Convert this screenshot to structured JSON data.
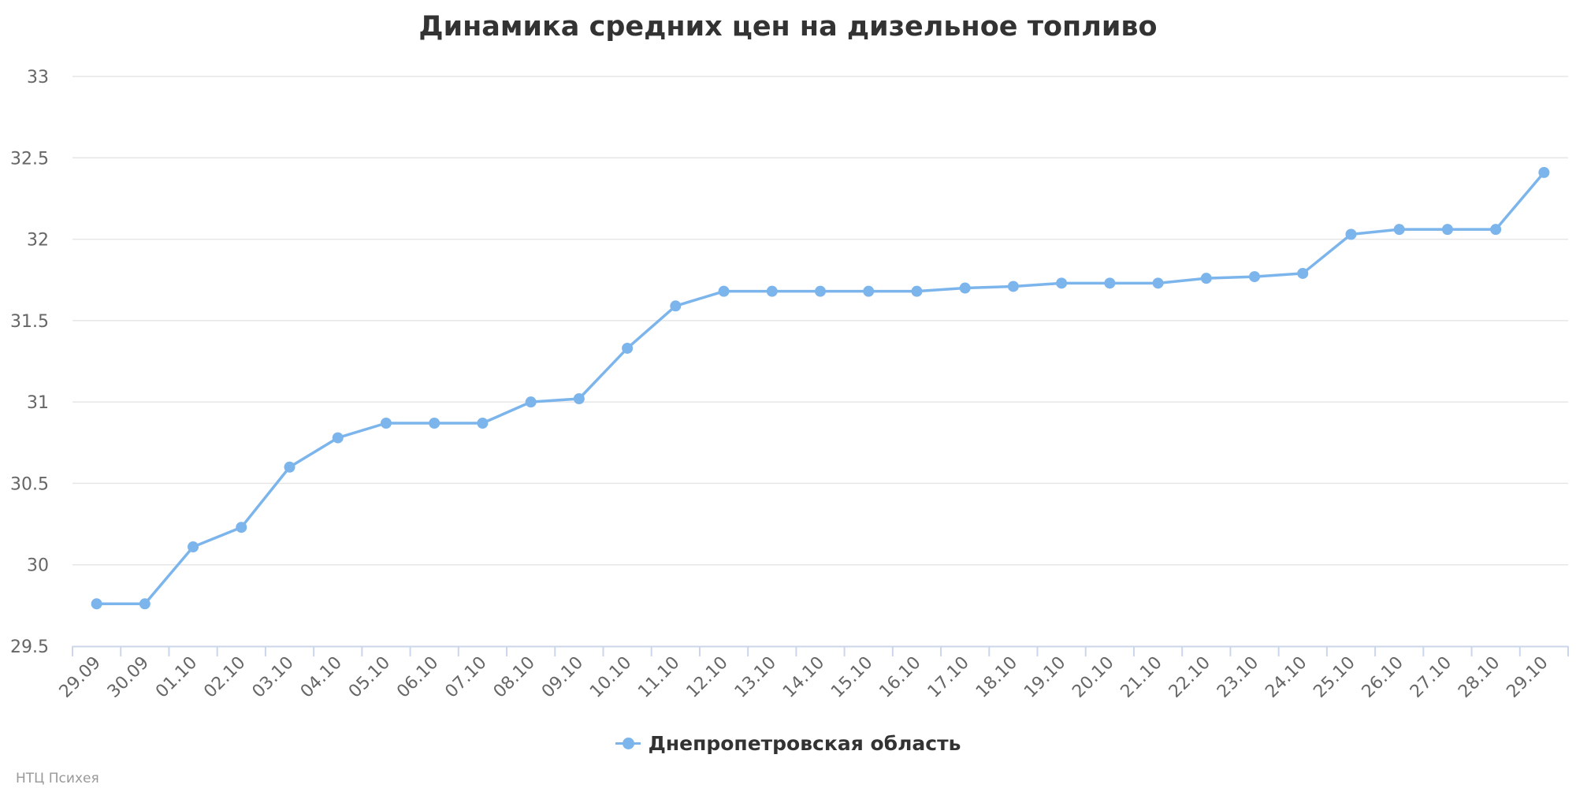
{
  "chart_data": {
    "type": "line",
    "title": "Динамика средних цен на дизельное топливо",
    "xlabel": "",
    "ylabel": "",
    "categories": [
      "29.09",
      "30.09",
      "01.10",
      "02.10",
      "03.10",
      "04.10",
      "05.10",
      "06.10",
      "07.10",
      "08.10",
      "09.10",
      "10.10",
      "11.10",
      "12.10",
      "13.10",
      "14.10",
      "15.10",
      "16.10",
      "17.10",
      "18.10",
      "19.10",
      "20.10",
      "21.10",
      "22.10",
      "23.10",
      "24.10",
      "25.10",
      "26.10",
      "27.10",
      "28.10",
      "29.10"
    ],
    "series": [
      {
        "name": "Днепропетровская область",
        "values": [
          29.76,
          29.76,
          30.11,
          30.23,
          30.6,
          30.78,
          30.87,
          30.87,
          30.87,
          31.0,
          31.02,
          31.33,
          31.59,
          31.68,
          31.68,
          31.68,
          31.68,
          31.68,
          31.7,
          31.71,
          31.73,
          31.73,
          31.73,
          31.76,
          31.77,
          31.79,
          32.03,
          32.06,
          32.06,
          32.06,
          32.41
        ],
        "color": "#7cb5ec"
      }
    ],
    "ylim": [
      29.5,
      33
    ],
    "yticks": [
      "29.5",
      "30",
      "30.5",
      "31",
      "31.5",
      "32",
      "32.5",
      "33"
    ],
    "grid": true,
    "legend": "bottom-center"
  },
  "credits": "НТЦ Психея"
}
